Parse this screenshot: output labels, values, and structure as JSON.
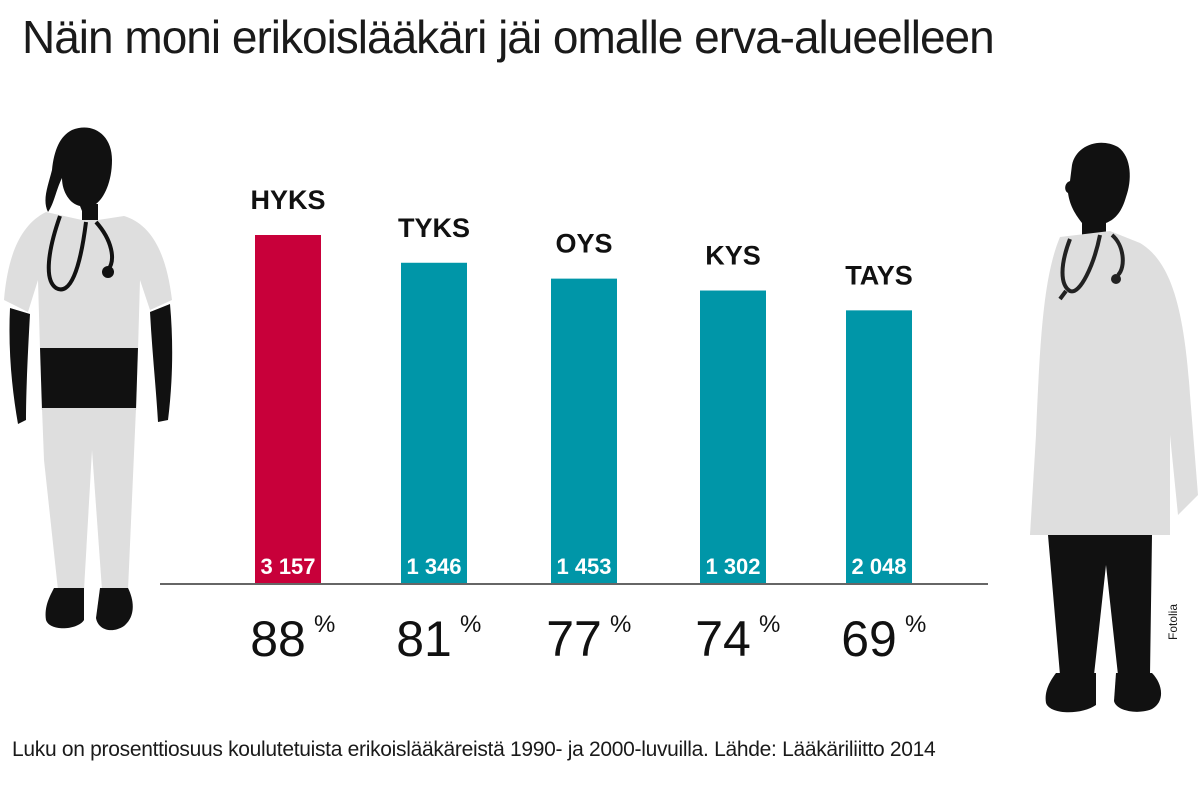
{
  "title": "Näin moni erikoislääkäri jäi omalle erva-alueelleen",
  "footnote": "Luku on prosenttiosuus koulutetuista erikoislääkäreistä 1990- ja 2000-luvuilla. Lähde: Lääkäriliitto 2014",
  "credit": "Fotolia",
  "colors": {
    "highlight": "#c8003a",
    "bar": "#0096a8",
    "figure_light": "#dedede",
    "figure_dark": "#111111"
  },
  "icons": [
    "female-nurse-silhouette",
    "male-doctor-silhouette"
  ],
  "chart_data": {
    "type": "bar",
    "categories": [
      "HYKS",
      "TYKS",
      "OYS",
      "KYS",
      "TAYS"
    ],
    "values": [
      88,
      81,
      77,
      74,
      69
    ],
    "counts": [
      "3 157",
      "1 346",
      "1 453",
      "1 302",
      "2 048"
    ],
    "value_labels": [
      "88",
      "81",
      "77",
      "74",
      "69"
    ],
    "unit": "%",
    "highlight_index": 0,
    "ylim": [
      0,
      100
    ],
    "grid": false
  }
}
